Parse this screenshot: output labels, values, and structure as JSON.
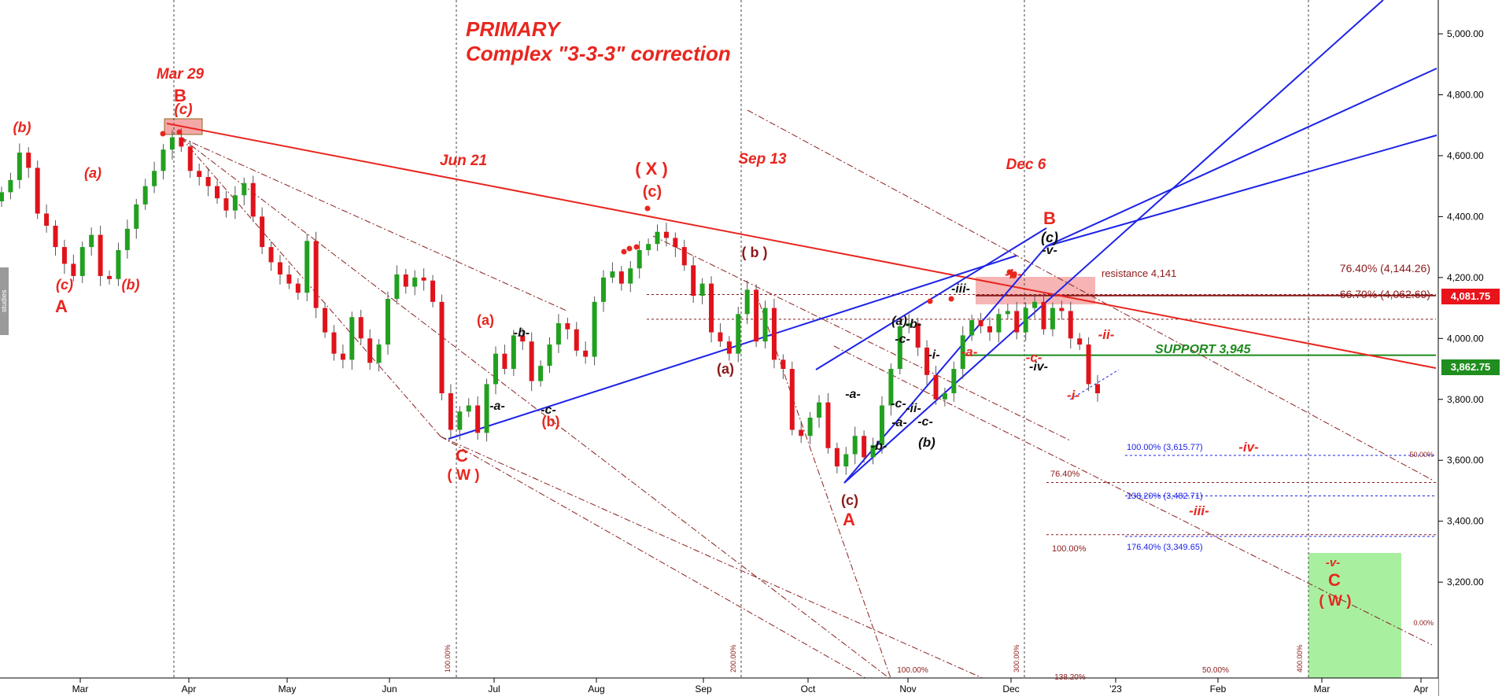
{
  "title": {
    "line1": "PRIMARY",
    "line2": "Complex \"3-3-3\" correction"
  },
  "side_tab": "studies",
  "price_tags": {
    "current": "4,081.75",
    "last": "3,862.75"
  },
  "colors": {
    "up": "#22a020",
    "down": "#e0131b",
    "wave_red": "#e8261f",
    "trend_blue": "#1d23e8",
    "dark_red": "#8b1a1a",
    "support_green": "#1c8a1c",
    "tag_red": "#e8131b",
    "tag_green": "#1f8e1f"
  },
  "chart_data": {
    "type": "candlestick",
    "y_axis": {
      "ticks": [
        "3,200.00",
        "3,400.00",
        "3,600.00",
        "3,800.00",
        "4,000.00",
        "4,200.00",
        "4,400.00",
        "4,600.00",
        "4,800.00",
        "5,000.00"
      ],
      "range": [
        3060,
        5100
      ]
    },
    "x_axis": {
      "ticks": [
        "Mar",
        "Apr",
        "May",
        "Jun",
        "Jul",
        "Aug",
        "Sep",
        "Oct",
        "Nov",
        "Dec",
        "'23",
        "Feb",
        "Mar",
        "Apr"
      ]
    },
    "date_markers": [
      "Mar 29",
      "Jun 21",
      "Sep 13",
      "Dec 6"
    ],
    "candles_close": [
      4480,
      4520,
      4610,
      4560,
      4410,
      4370,
      4300,
      4245,
      4205,
      4300,
      4340,
      4205,
      4195,
      4290,
      4360,
      4440,
      4500,
      4550,
      4620,
      4660,
      4630,
      4550,
      4530,
      4500,
      4460,
      4420,
      4470,
      4510,
      4400,
      4300,
      4250,
      4210,
      4180,
      4150,
      4320,
      4100,
      4020,
      3950,
      3930,
      4070,
      4000,
      3920,
      3980,
      4130,
      4210,
      4170,
      4200,
      4190,
      4120,
      3820,
      3700,
      3760,
      3780,
      3690,
      3850,
      3950,
      3900,
      4010,
      3990,
      3860,
      3910,
      3980,
      4050,
      4030,
      3960,
      3940,
      4120,
      4200,
      4220,
      4180,
      4230,
      4290,
      4310,
      4350,
      4330,
      4300,
      4240,
      4140,
      4180,
      4020,
      3990,
      3950,
      4080,
      4160,
      3990,
      4100,
      3930,
      3900,
      3700,
      3680,
      3740,
      3790,
      3640,
      3580,
      3620,
      3680,
      3610,
      3650,
      3780,
      3900,
      4040,
      4050,
      3970,
      3880,
      3800,
      3820,
      3900,
      4010,
      4060,
      4040,
      4020,
      4080,
      4090,
      4020,
      4100,
      4120,
      4030,
      4100,
      4090,
      4000,
      3980,
      3850,
      3820
    ],
    "levels": [
      {
        "label": "resistance 4,141",
        "value": 4141
      },
      {
        "label": "SUPPORT 3,945",
        "value": 3945
      }
    ],
    "fib_labels": [
      "76.40% (4,144.26)",
      "66.70% (4,062.69)",
      "100.00% (3,615.77)",
      "76.40%",
      "138.20% (3,482.71)",
      "100.00%",
      "176.40% (3,349.65)",
      "50.00%",
      "0.00%",
      "100.00%",
      "200.00%",
      "300.00%",
      "400.00%",
      "100.00%",
      "50.00%",
      "138.20%"
    ],
    "wave_labels": {
      "red": [
        "(b)",
        "(a)",
        "(c)",
        "A",
        "(b)",
        "Mar 29",
        "B",
        "(c)",
        "Jun 21",
        "C",
        "( W )",
        "(a)",
        "(b)",
        "( X )",
        "(c)",
        "Sep 13",
        "A",
        "Dec 6",
        "B",
        "-b-",
        "-a-",
        "-c-",
        "-ii-",
        "-i-",
        "-iv-",
        "-iii-",
        "-v-",
        "C",
        "( W )"
      ],
      "dark": [
        "( b )",
        "(a)",
        "(c)"
      ],
      "black": [
        "-b-",
        "-a-",
        "-c-",
        "(a)",
        "-b-",
        "-c-",
        "-a-",
        "-c-",
        "-b-",
        "-a-",
        "-i-",
        "-ii-",
        "-c-",
        "(b)",
        "-iii-",
        "(c)",
        "-v-",
        "-iv-"
      ]
    }
  }
}
